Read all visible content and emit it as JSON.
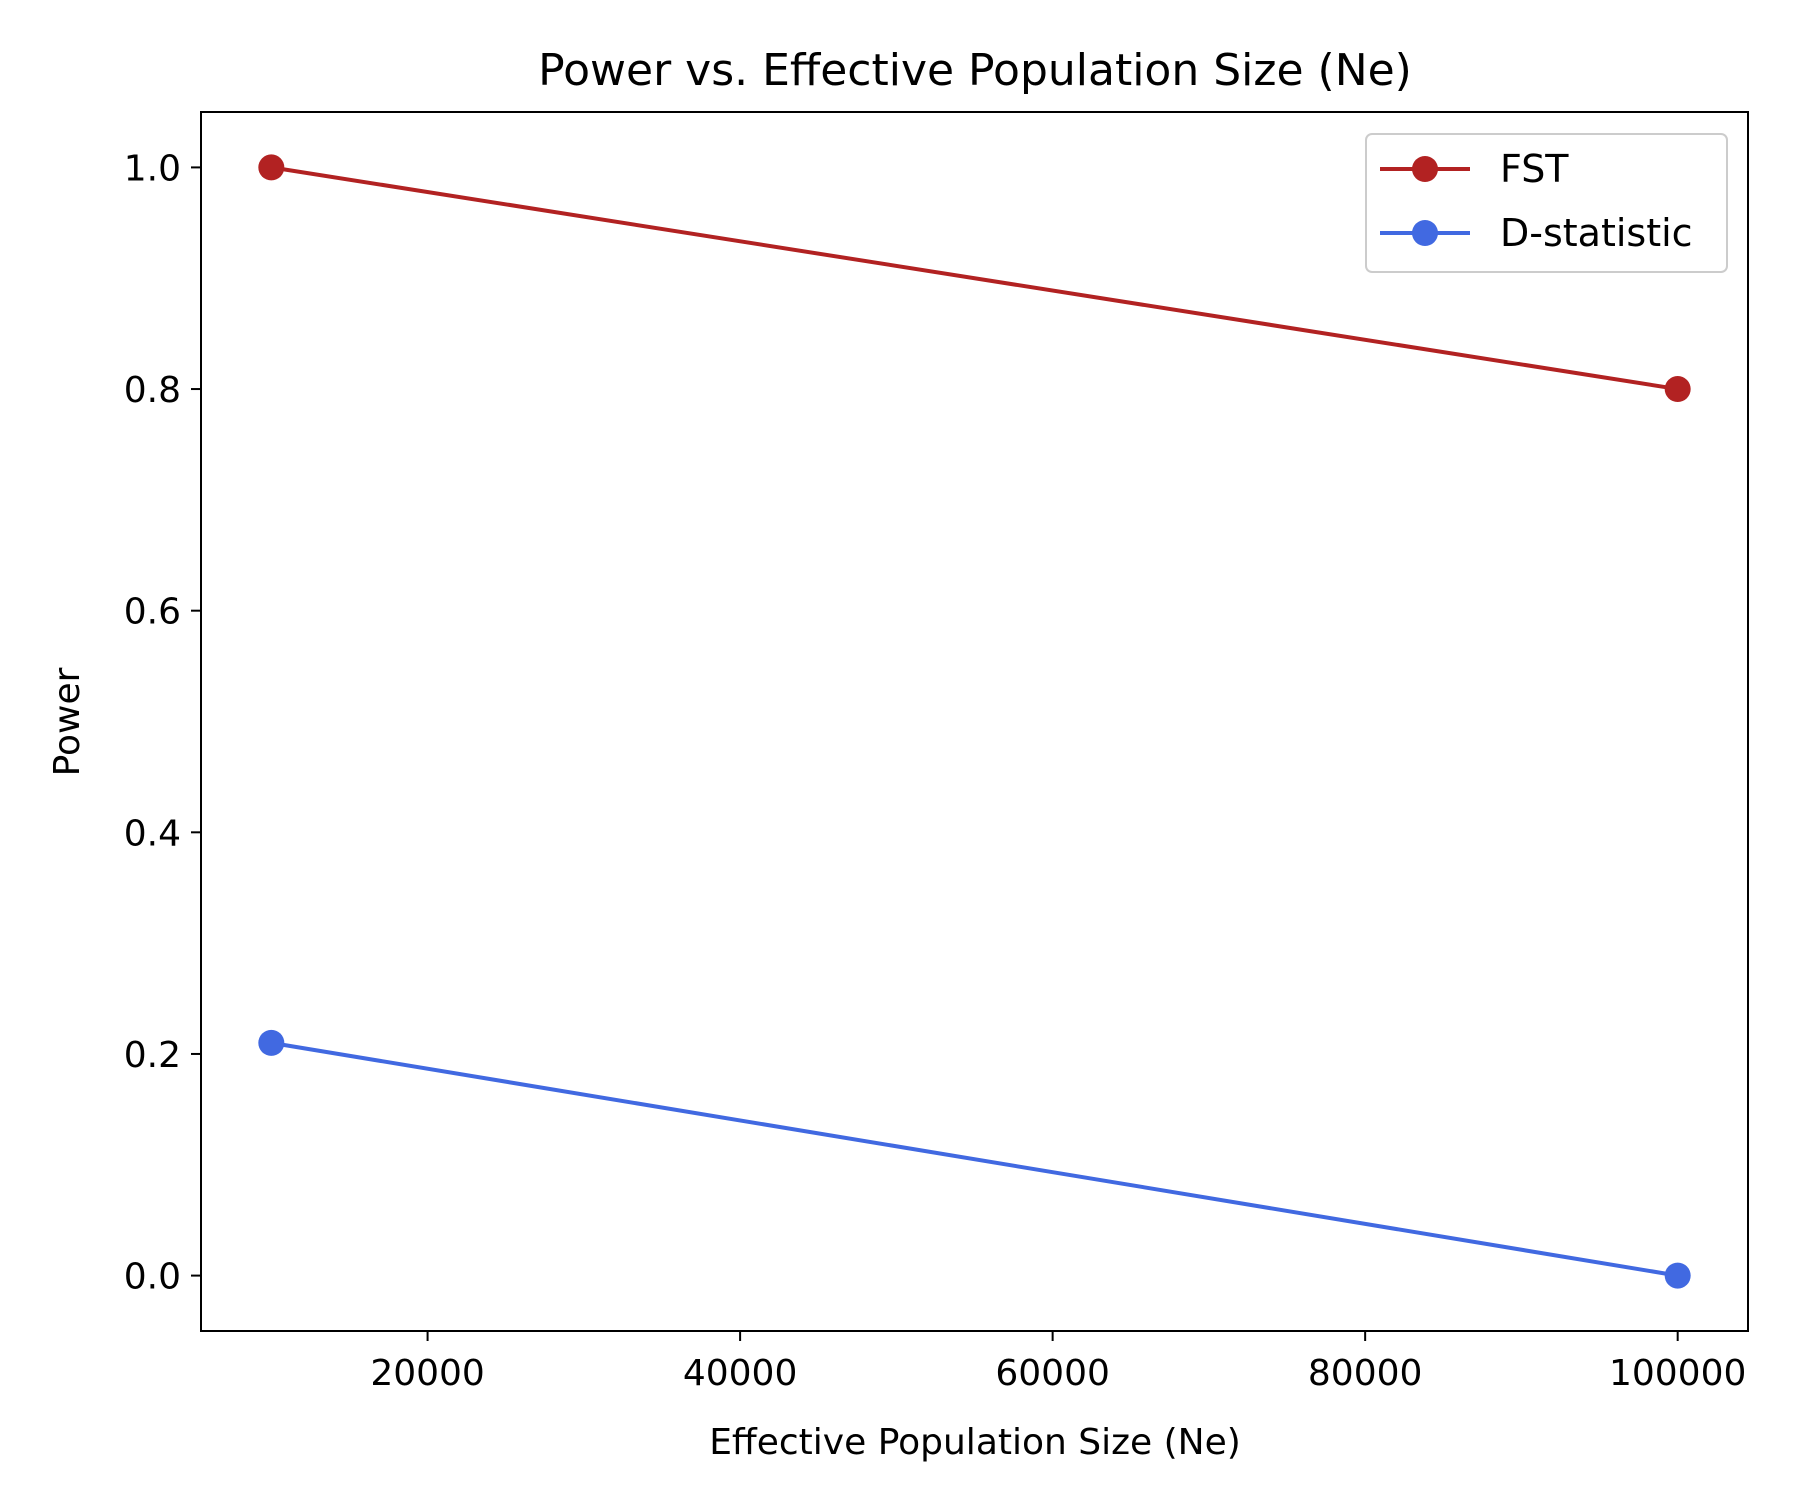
{
  "chart_data": {
    "type": "line",
    "title": "Power vs. Effective Population Size (Ne)",
    "xlabel": "Effective Population Size (Ne)",
    "ylabel": "Power",
    "x": [
      10000,
      100000
    ],
    "xlim": [
      5500,
      104500
    ],
    "ylim": [
      -0.05,
      1.05
    ],
    "xticks": [
      20000,
      40000,
      60000,
      80000,
      100000
    ],
    "xtick_labels": [
      "20000",
      "40000",
      "60000",
      "80000",
      "100000"
    ],
    "yticks": [
      0.0,
      0.2,
      0.4,
      0.6,
      0.8,
      1.0
    ],
    "ytick_labels": [
      "0.0",
      "0.2",
      "0.4",
      "0.6",
      "0.8",
      "1.0"
    ],
    "grid": false,
    "legend_position": "top-right",
    "series": [
      {
        "name": "FST",
        "values": [
          1.0,
          0.8
        ],
        "color": "#b22222",
        "marker": "circle"
      },
      {
        "name": "D-statistic",
        "values": [
          0.21,
          0.0
        ],
        "color": "#4169e1",
        "marker": "circle"
      }
    ]
  }
}
